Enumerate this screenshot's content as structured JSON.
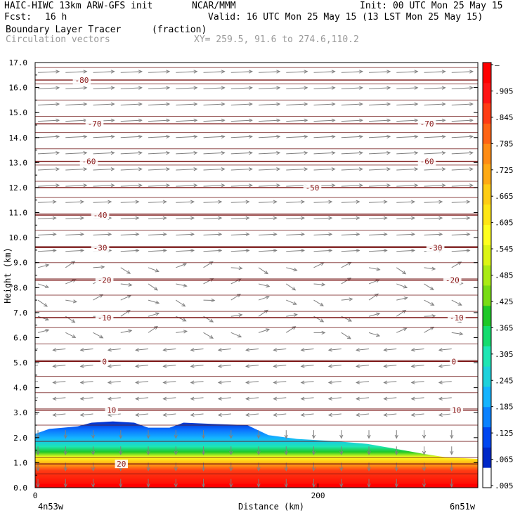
{
  "header": {
    "model": "HAIC-HIWC 13km ARW-GFS init",
    "org": "NCAR/MMM",
    "init": "Init: 00 UTC Mon 25 May 15",
    "fcst_label": "Fcst:",
    "fcst_value": "16 h",
    "valid": "Valid: 16 UTC Mon 25 May 15 (13 LST Mon 25 May 15)",
    "field": "Boundary Layer Tracer",
    "units": "(fraction)",
    "overlay": "Circulation vectors",
    "xy": "XY= 259.5, 91.6 to 274.6,110.2"
  },
  "chart_data": {
    "type": "heatmap",
    "title": "Boundary Layer Tracer",
    "xlabel": "Distance (km)",
    "ylabel": "Height (km)",
    "xlim": [
      0,
      313
    ],
    "ylim": [
      0,
      17
    ],
    "x_ticks": [
      {
        "value": 0,
        "label": "0"
      },
      {
        "value": 200,
        "label": "200"
      }
    ],
    "x_end_labels": [
      "4n53w",
      "6n51w"
    ],
    "y_ticks": [
      {
        "value": 0,
        "label": "0.0"
      },
      {
        "value": 1,
        "label": "1.0"
      },
      {
        "value": 2,
        "label": "2.0"
      },
      {
        "value": 3,
        "label": "3.0"
      },
      {
        "value": 4,
        "label": "4.0"
      },
      {
        "value": 5,
        "label": "5.0"
      },
      {
        "value": 6,
        "label": "6.0"
      },
      {
        "value": 7,
        "label": "7.0"
      },
      {
        "value": 8,
        "label": "8.0"
      },
      {
        "value": 9,
        "label": "9.0"
      },
      {
        "value": 10,
        "label": "10.0"
      },
      {
        "value": 11,
        "label": "11.0"
      },
      {
        "value": 12,
        "label": "12.0"
      },
      {
        "value": 13,
        "label": "13.0"
      },
      {
        "value": 14,
        "label": "14.0"
      },
      {
        "value": 15,
        "label": "15.0"
      },
      {
        "value": 16,
        "label": "16.0"
      },
      {
        "value": 17,
        "label": "17.0"
      }
    ],
    "colorbar": {
      "colors": [
        "#ffffff",
        "#0028c8",
        "#0046f0",
        "#0a82ff",
        "#14b4ff",
        "#1ed2dc",
        "#1ee6b4",
        "#14dc6e",
        "#1ec828",
        "#78dc14",
        "#aaeb14",
        "#dcf514",
        "#ffff1e",
        "#ffe614",
        "#ffcd14",
        "#ffaa14",
        "#ff8c14",
        "#ff6414",
        "#ff3c14",
        "#ff1414",
        "#ff0000"
      ],
      "labels": [
        "–",
        ".905",
        ".845",
        ".785",
        ".725",
        ".665",
        ".605",
        ".545",
        ".485",
        ".425",
        ".365",
        ".305",
        ".245",
        ".185",
        ".125",
        ".065",
        ".005"
      ]
    },
    "tracer_top_km": [
      [
        0,
        2.15
      ],
      [
        10,
        2.35
      ],
      [
        20,
        2.4
      ],
      [
        30,
        2.45
      ],
      [
        40,
        2.6
      ],
      [
        55,
        2.65
      ],
      [
        70,
        2.6
      ],
      [
        80,
        2.4
      ],
      [
        95,
        2.4
      ],
      [
        105,
        2.6
      ],
      [
        125,
        2.55
      ],
      [
        150,
        2.5
      ],
      [
        165,
        2.1
      ],
      [
        185,
        1.95
      ],
      [
        200,
        1.9
      ],
      [
        215,
        1.85
      ],
      [
        235,
        1.75
      ],
      [
        255,
        1.55
      ],
      [
        275,
        1.35
      ],
      [
        290,
        1.22
      ],
      [
        313,
        1.15
      ]
    ],
    "contour_label_color": "#8b1a1a",
    "contours": [
      {
        "level": "-80",
        "height_km": 16.3,
        "labels_at_km": [
          33
        ]
      },
      {
        "level": "-70",
        "height_km": 14.55,
        "labels_at_km": [
          42,
          277
        ]
      },
      {
        "level": "-60",
        "height_km": 13.05,
        "labels_at_km": [
          38,
          277
        ]
      },
      {
        "level": "-50",
        "height_km": 12.0,
        "labels_at_km": [
          196
        ]
      },
      {
        "level": "-40",
        "height_km": 10.9,
        "labels_at_km": [
          46
        ]
      },
      {
        "level": "-30",
        "height_km": 9.6,
        "labels_at_km": [
          46,
          283
        ]
      },
      {
        "level": "-20",
        "height_km": 8.3,
        "labels_at_km": [
          49,
          295
        ]
      },
      {
        "level": "-10",
        "height_km": 6.8,
        "labels_at_km": [
          49,
          298
        ]
      },
      {
        "level": "0",
        "height_km": 5.05,
        "labels_at_km": [
          49,
          296
        ]
      },
      {
        "level": "10",
        "height_km": 3.1,
        "labels_at_km": [
          54,
          298
        ]
      },
      {
        "level": "20",
        "height_km": 0.95,
        "labels_at_km": [
          61
        ]
      }
    ]
  }
}
